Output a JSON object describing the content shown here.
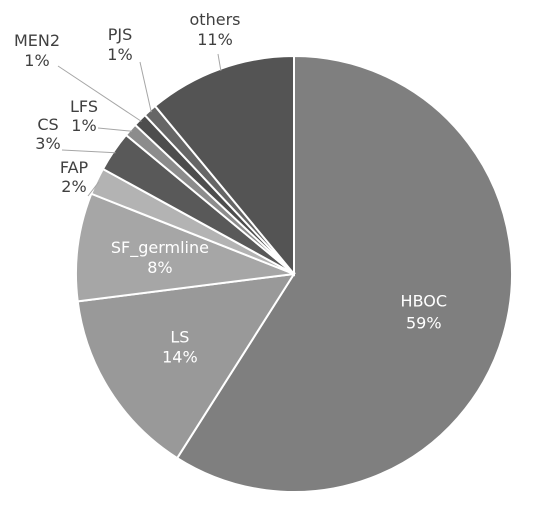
{
  "chart_data": {
    "type": "pie",
    "title": "",
    "slices": [
      {
        "label": "HBOC",
        "value": 59,
        "pct_text": "59%",
        "color": "#7f7f7f",
        "label_color": "#ffffff"
      },
      {
        "label": "LS",
        "value": 14,
        "pct_text": "14%",
        "color": "#999999",
        "label_color": "#ffffff"
      },
      {
        "label": "SF_germline",
        "value": 8,
        "pct_text": "8%",
        "color": "#a6a6a6",
        "label_color": "#ffffff"
      },
      {
        "label": "FAP",
        "value": 2,
        "pct_text": "2%",
        "color": "#b3b3b3",
        "label_color": "#404040"
      },
      {
        "label": "CS",
        "value": 3,
        "pct_text": "3%",
        "color": "#595959",
        "label_color": "#404040"
      },
      {
        "label": "LFS",
        "value": 1,
        "pct_text": "1%",
        "color": "#8c8c8c",
        "label_color": "#404040"
      },
      {
        "label": "MEN2",
        "value": 1,
        "pct_text": "1%",
        "color": "#4d4d4d",
        "label_color": "#404040"
      },
      {
        "label": "PJS",
        "value": 1,
        "pct_text": "1%",
        "color": "#666666",
        "label_color": "#404040"
      },
      {
        "label": "others",
        "value": 11,
        "pct_text": "11%",
        "color": "#545454",
        "label_color": "#404040"
      }
    ],
    "legend": "none",
    "colors": {
      "border": "#ffffff",
      "leader": "#a6a6a6"
    }
  }
}
